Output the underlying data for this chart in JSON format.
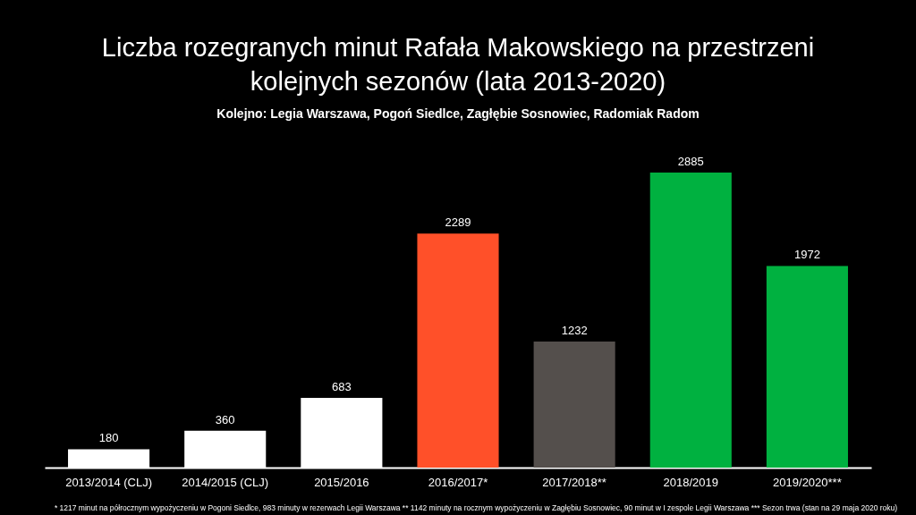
{
  "chart_data": {
    "type": "bar",
    "title": "Liczba rozegranych minut Rafała Makowskiego na przestrzeni kolejnych sezonów (lata 2013-2020)",
    "subtitle": "Kolejno: Legia Warszawa, Pogoń Siedlce, Zagłębie Sosnowiec, Radomiak Radom",
    "categories": [
      "2013/2014 (CLJ)",
      "2014/2015 (CLJ)",
      "2015/2016",
      "2016/2017*",
      "2017/2018**",
      "2018/2019",
      "2019/2020***"
    ],
    "values": [
      180,
      360,
      683,
      2289,
      1232,
      2885,
      1972
    ],
    "colors": [
      "#ffffff",
      "#ffffff",
      "#ffffff",
      "#ff5029",
      "#544f4c",
      "#00b140",
      "#00b140"
    ],
    "data_labels": true,
    "annotations": [
      "* 1217 minut na półrocznym wypożyczeniu w Pogoni Siedlce, 983 minuty w rezerwach Legii Warszawa  ** 1142 minuty na rocznym wypożyczeniu w Zagłębiu Sosnowiec, 90 minut w I zespole Legii Warszawa  *** Sezon trwa (stan na 29 maja 2020 roku)"
    ]
  }
}
